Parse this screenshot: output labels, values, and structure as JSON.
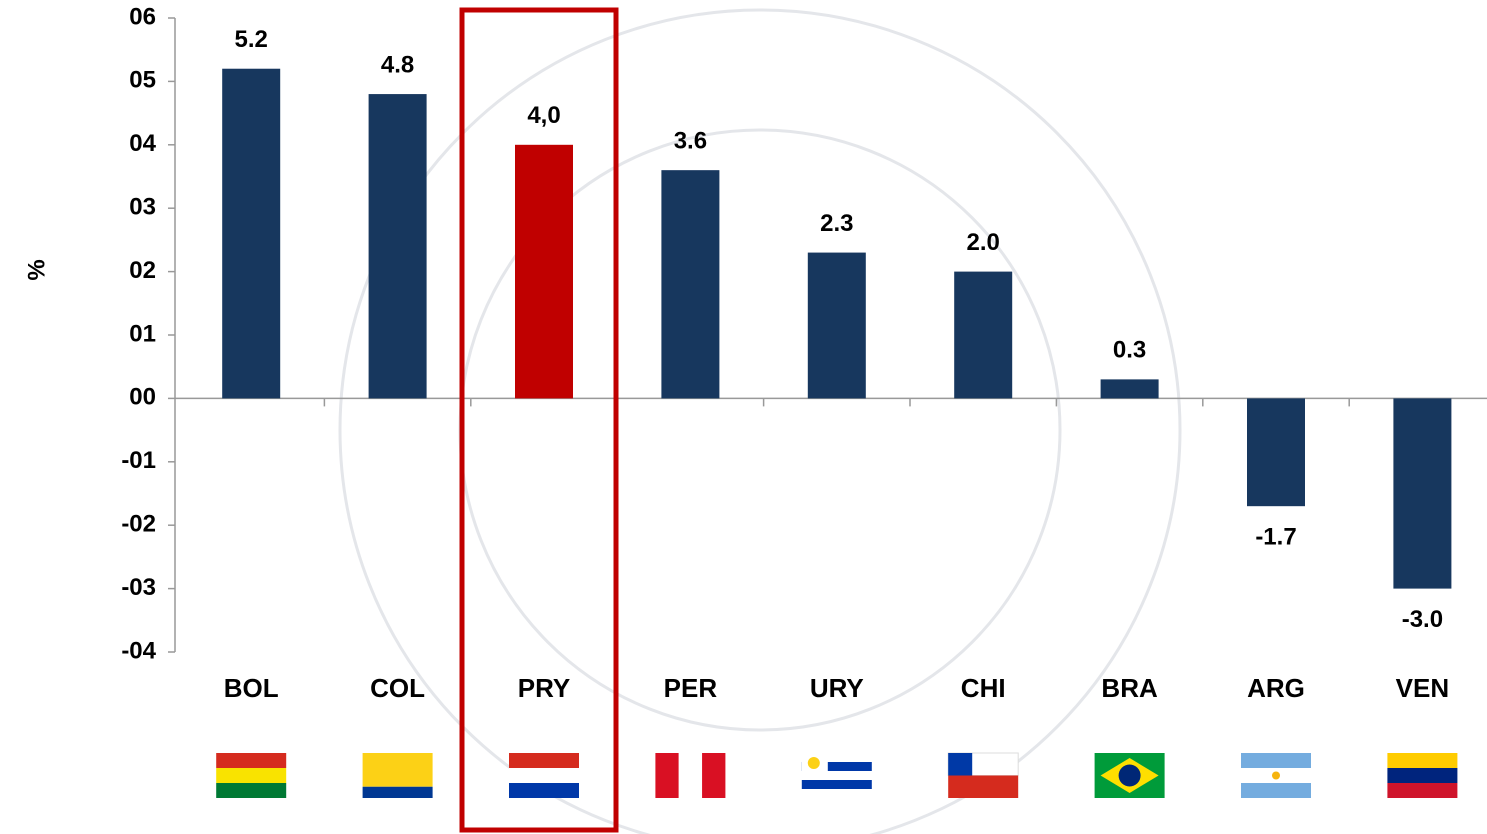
{
  "chart_data": {
    "type": "bar",
    "y_label": "%",
    "categories": [
      "BOL",
      "COL",
      "PRY",
      "PER",
      "URY",
      "CHI",
      "BRA",
      "ARG",
      "VEN"
    ],
    "values": [
      5.2,
      4.8,
      4.0,
      3.6,
      2.3,
      2.0,
      0.3,
      -1.7,
      -3.0
    ],
    "value_labels": [
      "5.2",
      "4.8",
      "4,0",
      "3.6",
      "2.3",
      "2.0",
      "0.3",
      "-1.7",
      "-3.0"
    ],
    "colors": [
      "#17375e",
      "#17375e",
      "#c00000",
      "#17375e",
      "#17375e",
      "#17375e",
      "#17375e",
      "#17375e",
      "#17375e"
    ],
    "highlight": "PRY",
    "ylim": [
      -4,
      6
    ],
    "yticks": [
      {
        "value": -4,
        "label": "-04"
      },
      {
        "value": -3,
        "label": "-03"
      },
      {
        "value": -2,
        "label": "-02"
      },
      {
        "value": -1,
        "label": "-01"
      },
      {
        "value": 0,
        "label": "00"
      },
      {
        "value": 1,
        "label": "01"
      },
      {
        "value": 2,
        "label": "02"
      },
      {
        "value": 3,
        "label": "03"
      },
      {
        "value": 4,
        "label": "04"
      },
      {
        "value": 5,
        "label": "05"
      },
      {
        "value": 6,
        "label": "06"
      }
    ]
  }
}
